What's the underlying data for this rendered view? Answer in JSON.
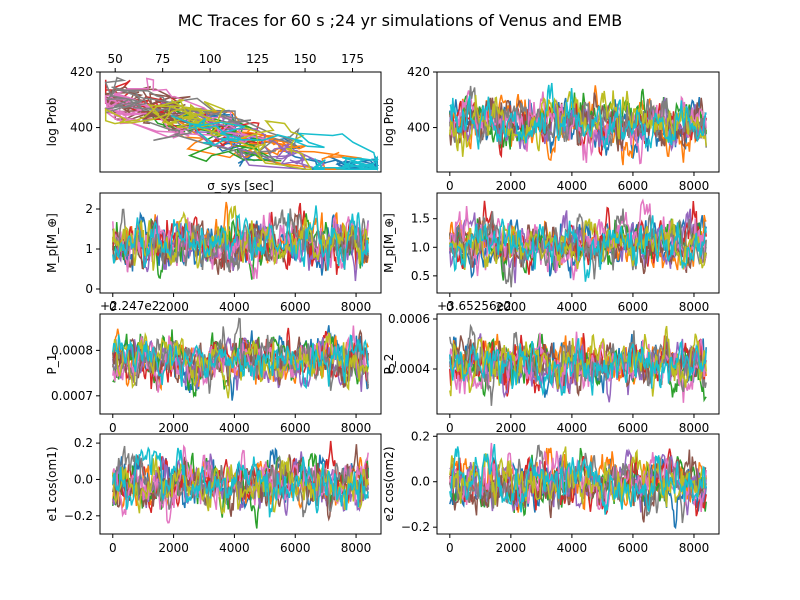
{
  "figure": {
    "title": "MC Traces for 60 s ;24 yr simulations of Venus and EMB"
  },
  "chart_data": [
    {
      "id": "logprob-vs-sigma",
      "type": "line",
      "xlabel": "σ_sys [sec]",
      "ylabel": "log Prob",
      "xaxis_position": "top",
      "xlim": [
        42,
        190
      ],
      "ylim": [
        384,
        420
      ],
      "xticks": [
        "50",
        "75",
        "100",
        "125",
        "150",
        "175"
      ],
      "yticks": [
        "400",
        "420"
      ],
      "offset_text": "",
      "series_count": 10,
      "approx_extent": {
        "x": [
          45,
          188
        ],
        "y": [
          385,
          418
        ]
      },
      "grid": false
    },
    {
      "id": "logprob-trace",
      "type": "line",
      "xlabel": "",
      "ylabel": "log Prob",
      "xlim": [
        -420,
        8820
      ],
      "ylim": [
        384,
        420
      ],
      "xticks": [
        "0",
        "2000",
        "4000",
        "6000",
        "8000"
      ],
      "yticks": [
        "400",
        "420"
      ],
      "offset_text": "",
      "series_count": 10,
      "approx_range": [
        386,
        418
      ],
      "grid": false
    },
    {
      "id": "mp1-trace",
      "type": "line",
      "xlabel": "",
      "ylabel": "M_p[M_⊕]",
      "xlim": [
        -420,
        8820
      ],
      "ylim": [
        -0.1,
        2.4
      ],
      "xticks": [
        "0",
        "2000",
        "4000",
        "6000",
        "8000"
      ],
      "yticks": [
        "0",
        "1",
        "2"
      ],
      "offset_text": "",
      "series_count": 10,
      "approx_range": [
        0.0,
        2.3
      ],
      "grid": false
    },
    {
      "id": "mp2-trace",
      "type": "line",
      "xlabel": "",
      "ylabel": "M_p[M_⊕]",
      "xlim": [
        -420,
        8820
      ],
      "ylim": [
        0.2,
        1.95
      ],
      "xticks": [
        "0",
        "2000",
        "4000",
        "6000",
        "8000"
      ],
      "yticks": [
        "0.5",
        "1.0",
        "1.5"
      ],
      "offset_text": "",
      "series_count": 10,
      "approx_range": [
        0.3,
        1.85
      ],
      "grid": false
    },
    {
      "id": "p1-trace",
      "type": "line",
      "xlabel": "",
      "ylabel": "P_1",
      "xlim": [
        -420,
        8820
      ],
      "ylim": [
        0.00066,
        0.00088
      ],
      "xticks": [
        "0",
        "2000",
        "4000",
        "6000",
        "8000"
      ],
      "yticks": [
        "0.0007",
        "0.0008"
      ],
      "offset_text": "+2.247e2",
      "series_count": 10,
      "approx_range": [
        0.00068,
        0.00087
      ],
      "grid": false
    },
    {
      "id": "p2-trace",
      "type": "line",
      "xlabel": "",
      "ylabel": "P_2",
      "xlim": [
        -420,
        8820
      ],
      "ylim": [
        0.00022,
        0.00062
      ],
      "xticks": [
        "0",
        "2000",
        "4000",
        "6000",
        "8000"
      ],
      "yticks": [
        "0.0004",
        "0.0006"
      ],
      "offset_text": "+3.65256e2",
      "series_count": 10,
      "approx_range": [
        0.00024,
        0.0006
      ],
      "grid": false
    },
    {
      "id": "ecos1-trace",
      "type": "line",
      "xlabel": "",
      "ylabel": "e1 cos(om1)",
      "xlim": [
        -420,
        8820
      ],
      "ylim": [
        -0.3,
        0.25
      ],
      "xticks": [
        "0",
        "2000",
        "4000",
        "6000",
        "8000"
      ],
      "yticks": [
        "−0.2",
        "0.0",
        "0.2"
      ],
      "offset_text": "",
      "series_count": 10,
      "approx_range": [
        -0.27,
        0.23
      ],
      "grid": false
    },
    {
      "id": "ecos2-trace",
      "type": "line",
      "xlabel": "",
      "ylabel": "e2 cos(om2)",
      "xlim": [
        -420,
        8820
      ],
      "ylim": [
        -0.23,
        0.21
      ],
      "xticks": [
        "0",
        "2000",
        "4000",
        "6000",
        "8000"
      ],
      "yticks": [
        "−0.2",
        "0.0",
        "0.2"
      ],
      "offset_text": "",
      "series_count": 10,
      "approx_range": [
        -0.21,
        0.2
      ],
      "grid": false
    }
  ],
  "colors": {
    "series": [
      "#1f77b4",
      "#ff7f0e",
      "#2ca02c",
      "#d62728",
      "#9467bd",
      "#8c564b",
      "#e377c2",
      "#7f7f7f",
      "#bcbd22",
      "#17becf"
    ]
  }
}
